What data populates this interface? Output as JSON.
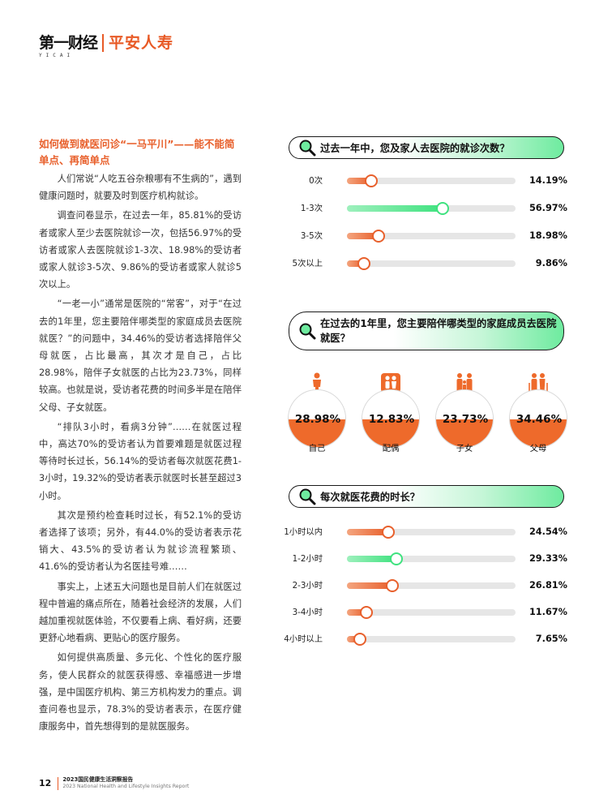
{
  "header": {
    "logo_yicai": "第一财经",
    "logo_yicai_sub": "YICAI",
    "logo_pingan": "平安人寿"
  },
  "article": {
    "heading": "如何做到就医问诊“一马平川”——能不能简单点、再简单点",
    "paragraphs": [
      "人们常说“人吃五谷杂粮哪有不生病的”，遇到健康问题时，就要及时到医疗机构就诊。",
      "调查问卷显示，在过去一年，85.81%的受访者或家人至少去医院就诊一次，包括56.97%的受访者或家人去医院就诊1-3次、18.98%的受访者或家人就诊3-5次、9.86%的受访者或家人就诊5次以上。",
      "“一老一小”通常是医院的“常客”，对于“在过去的1年里，您主要陪伴哪类型的家庭成员去医院就医？”的问题中，34.46%的受访者选择陪伴父母就医，占比最高，其次才是自己，占比28.98%，陪伴子女就医的占比为23.73%，同样较高。也就是说，受访者花费的时间多半是在陪伴父母、子女就医。",
      "“排队3小时，看病3分钟”……在就医过程中，高达70%的受访者认为首要难题是就医过程等待时长过长，56.14%的受访者每次就医花费1-3小时，19.32%的受访者表示就医时长甚至超过3小时。",
      "其次是预约检查耗时过长，有52.1%的受访者选择了该项；另外，有44.0%的受访者表示花销大、43.5%的受访者认为就诊流程繁琐、41.6%的受访者认为名医挂号难……",
      "事实上，上述五大问题也是目前人们在就医过程中普遍的痛点所在，随着社会经济的发展，人们越加重视就医体验，不仅要看上病、看好病，还要更舒心地看病、更贴心的医疗服务。",
      "如何提供高质量、多元化、个性化的医疗服务，使人民群众的就医获得感、幸福感进一步增强，是中国医疗机构、第三方机构发力的重点。调查问卷也显示，78.3%的受访者表示，在医疗健康服务中，首先想得到的是就医服务。"
    ]
  },
  "colors": {
    "accent": "#e8602c",
    "highlight": "#3fe27f",
    "track": "#e6e6e6"
  },
  "chart_data": [
    {
      "type": "bar",
      "title": "过去一年中，您及家人去医院的就诊次数？",
      "categories": [
        "0次",
        "1-3次",
        "3-5次",
        "5次以上"
      ],
      "values": [
        14.19,
        56.97,
        18.98,
        9.86
      ],
      "value_labels": [
        "14.19%",
        "56.97%",
        "18.98%",
        "9.86%"
      ],
      "highlight_index": 1,
      "xlim": [
        0,
        100
      ]
    },
    {
      "type": "pie",
      "title": "在过去的1年里，您主要陪伴哪类型的家庭成员去医院就医？",
      "categories": [
        "自己",
        "配偶",
        "子女",
        "父母"
      ],
      "values": [
        28.98,
        12.83,
        23.73,
        34.46
      ],
      "value_labels": [
        "28.98%",
        "12.83%",
        "23.73%",
        "34.46%"
      ],
      "icons": [
        "person-icon",
        "couple-icon",
        "family-icon",
        "elderly-couple-icon"
      ]
    },
    {
      "type": "bar",
      "title": "每次就医花费的时长？",
      "categories": [
        "1小时以内",
        "1-2小时",
        "2-3小时",
        "3-4小时",
        "4小时以上"
      ],
      "values": [
        24.54,
        29.33,
        26.81,
        11.67,
        7.65
      ],
      "value_labels": [
        "24.54%",
        "29.33%",
        "26.81%",
        "11.67%",
        "7.65%"
      ],
      "highlight_index": 1,
      "xlim": [
        0,
        100
      ]
    }
  ],
  "footer": {
    "page_number": "12",
    "report_cn": "2023国民健康生活洞察报告",
    "report_en": "2023 National Health and Lifestyle Insights Report"
  }
}
